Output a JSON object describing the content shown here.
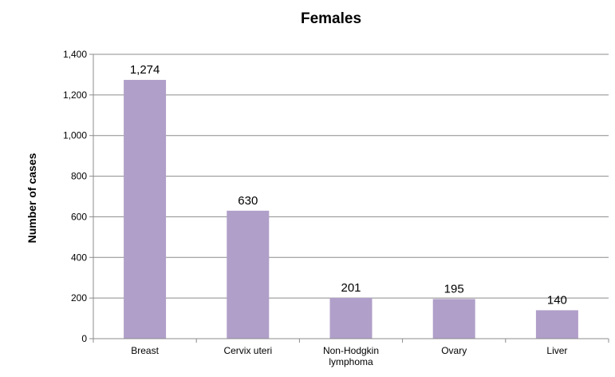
{
  "chart_data": {
    "type": "bar",
    "title": "Females",
    "xlabel": "",
    "ylabel": "Number of cases",
    "categories": [
      [
        "Breast"
      ],
      [
        "Cervix uteri"
      ],
      [
        "Non-Hodgkin",
        "lymphoma"
      ],
      [
        "Ovary"
      ],
      [
        "Liver"
      ]
    ],
    "values": [
      1274,
      630,
      201,
      195,
      140
    ],
    "value_labels": [
      "1,274",
      "630",
      "201",
      "195",
      "140"
    ],
    "ylim": [
      0,
      1400
    ],
    "yticks": [
      0,
      200,
      400,
      600,
      800,
      1000,
      1200,
      1400
    ],
    "ytick_labels": [
      "0",
      "200",
      "400",
      "600",
      "800",
      "1,000",
      "1,200",
      "1,400"
    ],
    "grid": true,
    "legend": "none",
    "colors": {
      "bar": "#b09fc9",
      "grid": "#8c8c8c",
      "axis": "#8c8c8c"
    }
  }
}
